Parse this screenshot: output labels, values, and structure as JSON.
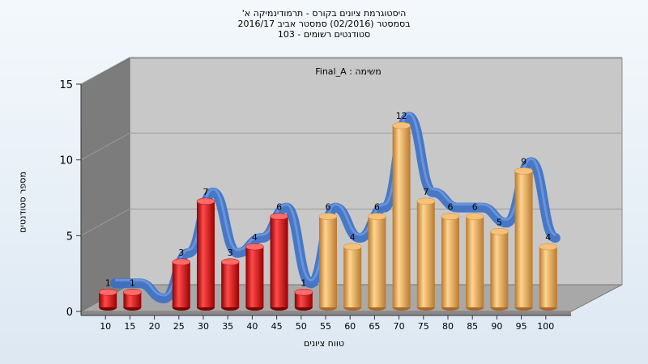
{
  "chart_data": {
    "type": "bar",
    "title_lines": [
      "היסטוגרמת ציונים בקורס - תרמודינמיקה א'",
      "בסמסטר  (02/2016)  סמסטר אביב 2016/17",
      "סטודנטים רשומים - 103"
    ],
    "task_label": "משימה : Final_A",
    "ylabel": "מספר סטודנטים",
    "xlabel": "טווח ציונים",
    "ylim": [
      0,
      15
    ],
    "yticks": [
      0,
      5,
      10,
      15
    ],
    "categories": [
      "10",
      "15",
      "20",
      "25",
      "30",
      "35",
      "40",
      "45",
      "50",
      "55",
      "60",
      "65",
      "70",
      "75",
      "80",
      "85",
      "90",
      "95",
      "100"
    ],
    "values": [
      1,
      1,
      0,
      3,
      7,
      3,
      4,
      6,
      1,
      6,
      4,
      6,
      12,
      7,
      6,
      6,
      5,
      9,
      4
    ],
    "bar_colors": [
      "red",
      "red",
      "red",
      "red",
      "red",
      "red",
      "red",
      "red",
      "red",
      "orange",
      "orange",
      "orange",
      "orange",
      "orange",
      "orange",
      "orange",
      "orange",
      "orange",
      "orange"
    ],
    "palette": {
      "red": "#e01818",
      "orange": "#e8a850",
      "trend": "#3a6fc4"
    },
    "trend_line": true,
    "grid": true
  }
}
